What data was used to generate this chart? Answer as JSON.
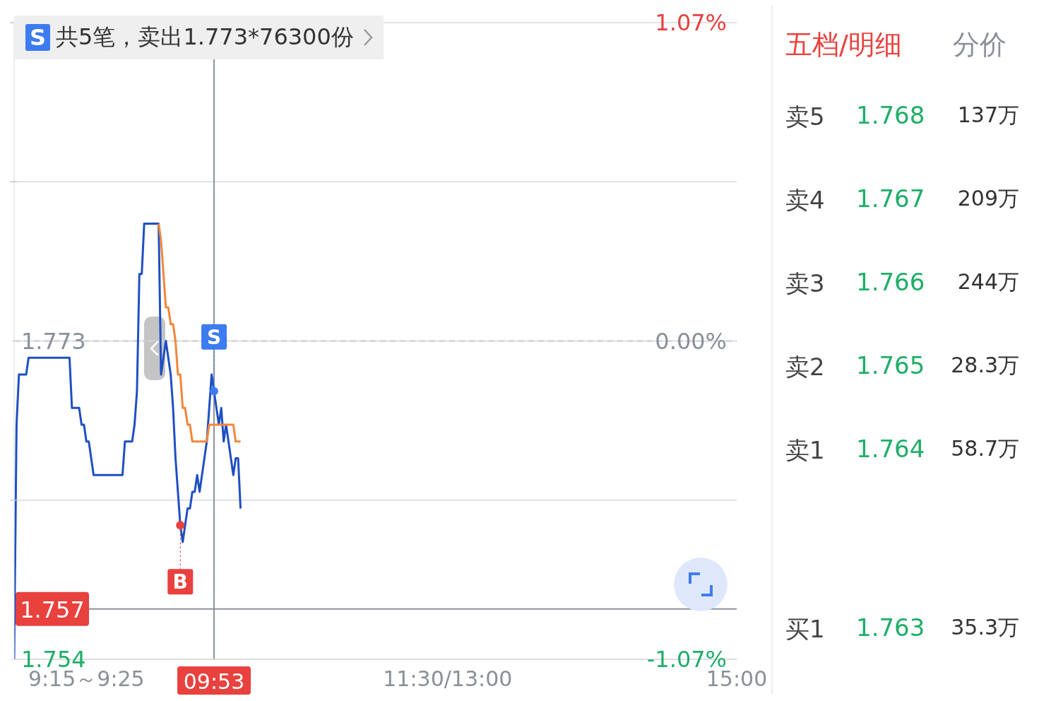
{
  "chart_data": {
    "type": "line",
    "categories": [
      null,
      null,
      null,
      null,
      null,
      null,
      null,
      null,
      null,
      null,
      null,
      null,
      null,
      null,
      null,
      null,
      null,
      null,
      null,
      null,
      null,
      null,
      null,
      null,
      null,
      null,
      null,
      null,
      null,
      null,
      "9:15～9:25",
      null,
      null,
      null,
      null,
      null,
      null,
      null,
      null,
      null,
      null,
      null,
      null,
      null,
      null,
      null,
      null,
      null,
      null,
      null,
      null,
      null,
      null,
      null,
      null,
      null,
      null,
      null,
      null,
      null,
      null,
      null,
      null,
      null,
      null,
      null,
      null,
      null,
      null,
      null,
      null,
      null,
      null,
      null,
      null,
      null,
      null,
      null,
      null,
      null,
      null,
      null,
      null,
      "09:53",
      null,
      null,
      null,
      null,
      null,
      null,
      null,
      null,
      null,
      null,
      null,
      null,
      null,
      null,
      null,
      null,
      null,
      null,
      null,
      null,
      null,
      null,
      null,
      null,
      null,
      null,
      null,
      null,
      null,
      null,
      null,
      null,
      null,
      null,
      null,
      null,
      null,
      null,
      null,
      null,
      null,
      null,
      null,
      null,
      null,
      null,
      null,
      null,
      null,
      null,
      null,
      null,
      null,
      null,
      null,
      null,
      null,
      null,
      null,
      null,
      null,
      null,
      null,
      null,
      null,
      null,
      null,
      null,
      null,
      null,
      null,
      null,
      null,
      null,
      null,
      null,
      null,
      null,
      null,
      null,
      null,
      null,
      null,
      null,
      null,
      null,
      null,
      null,
      null,
      null,
      null,
      null,
      null,
      null,
      null,
      null,
      "11:30/13:00",
      null,
      null,
      null,
      null,
      null,
      null,
      null,
      null,
      null,
      null,
      null,
      null,
      null,
      null,
      null,
      null,
      null,
      null,
      null,
      null,
      null,
      null,
      null,
      null,
      null,
      null,
      null,
      null,
      null,
      null,
      null,
      null,
      null,
      null,
      null,
      null,
      null,
      null,
      null,
      null,
      null,
      null,
      null,
      null,
      null,
      null,
      null,
      null,
      null,
      null,
      null,
      null,
      null,
      null,
      null,
      null,
      null,
      null,
      null,
      null,
      null,
      null,
      null,
      null,
      null,
      null,
      null,
      null,
      null,
      null,
      null,
      null,
      null,
      null,
      null,
      null,
      null,
      null,
      null,
      null,
      null,
      null,
      null,
      null,
      null,
      null,
      null,
      null,
      null,
      null,
      null,
      null,
      null,
      null,
      null,
      null,
      null,
      null,
      null,
      null,
      null,
      null,
      null,
      null,
      null,
      null,
      null,
      null,
      null,
      null,
      null,
      null,
      null,
      null,
      null,
      null,
      null,
      null,
      null,
      "15:00"
    ],
    "ylim": [
      1.754,
      1.792
    ],
    "yticks": [
      {
        "value": 1.754,
        "label": "1.754"
      },
      {
        "value": 1.7635,
        "label": null
      },
      {
        "value": 1.773,
        "label": "1.773"
      },
      {
        "value": 1.7825,
        "label": null
      },
      {
        "value": 1.792,
        "label": null
      }
    ],
    "y2lim": [
      -1.07,
      1.07
    ],
    "y2ticks": [
      {
        "value": -1.07,
        "label": "-1.07%"
      },
      {
        "value": 0,
        "label": "0.00%"
      },
      {
        "value": 1.07,
        "label": "1.07%"
      }
    ],
    "grid": "y",
    "marker": "none",
    "line_style": "solid",
    "legend": false,
    "series": [
      {
        "color": "#1f4fc2",
        "values": [
          1.754,
          1.768,
          1.771,
          1.771,
          1.771,
          1.771,
          1.772,
          1.772,
          1.772,
          1.772,
          1.772,
          1.772,
          1.772,
          1.772,
          1.772,
          1.772,
          1.772,
          1.772,
          1.772,
          1.772,
          1.772,
          1.772,
          1.772,
          1.772,
          1.769,
          1.769,
          1.769,
          1.769,
          1.768,
          1.768,
          1.767,
          1.767,
          1.766,
          1.765,
          1.765,
          1.765,
          1.765,
          1.765,
          1.765,
          1.765,
          1.765,
          1.765,
          1.765,
          1.765,
          1.765,
          1.765,
          1.767,
          1.767,
          1.767,
          1.767,
          1.768,
          1.77,
          1.777,
          1.777,
          1.78,
          1.78,
          1.78,
          1.78,
          1.78,
          1.78,
          1.78,
          1.771,
          1.772,
          1.773,
          1.772,
          1.771,
          1.769,
          1.766,
          1.764,
          1.762,
          1.761,
          1.762,
          1.763,
          1.763,
          1.764,
          1.764,
          1.765,
          1.764,
          1.765,
          1.766,
          1.767,
          1.769,
          1.771,
          1.77,
          1.769,
          1.768,
          1.769,
          1.767,
          1.768,
          1.767,
          1.766,
          1.765,
          1.766,
          1.766,
          1.763,
          null,
          null,
          null,
          null,
          null,
          null,
          null,
          null,
          null,
          null,
          null,
          null,
          null,
          null,
          null,
          null,
          null,
          null,
          null,
          null,
          null,
          null,
          null,
          null,
          null,
          null,
          null,
          null,
          null,
          null,
          null,
          null,
          null,
          null,
          null,
          null,
          null,
          null,
          null,
          null,
          null,
          null,
          null,
          null,
          null,
          null,
          null,
          null,
          null,
          null,
          null,
          null,
          null,
          null,
          null,
          null,
          null,
          null,
          null,
          null,
          null,
          null,
          null,
          null,
          null,
          null,
          null,
          null,
          null,
          null,
          null,
          null,
          null,
          null,
          null,
          null,
          null,
          null,
          null,
          null,
          null,
          null,
          null,
          null,
          null,
          null,
          null,
          null,
          null,
          null,
          null,
          null,
          null,
          null,
          null,
          null,
          null,
          null,
          null,
          null,
          null,
          null,
          null,
          null,
          null,
          null,
          null,
          null,
          null,
          null,
          null,
          null,
          null,
          null,
          null,
          null,
          null,
          null,
          null,
          null,
          null,
          null,
          null,
          null,
          null,
          null,
          null,
          null,
          null,
          null,
          null,
          null,
          null,
          null,
          null,
          null,
          null,
          null,
          null,
          null,
          null,
          null,
          null,
          null,
          null,
          null,
          null,
          null,
          null,
          null,
          null,
          null,
          null,
          null,
          null,
          null,
          null,
          null,
          null,
          null,
          null,
          null,
          null,
          null,
          null,
          null,
          null,
          null,
          null,
          null,
          null,
          null,
          null,
          null,
          null,
          null,
          null,
          null,
          null,
          null,
          null,
          null,
          null,
          null,
          null,
          null,
          null,
          null,
          null,
          null,
          null,
          null,
          null,
          null,
          null,
          null,
          null,
          null,
          null,
          null,
          null,
          null,
          null,
          null,
          null,
          null
        ]
      },
      {
        "color": "#f0873a",
        "values": [
          null,
          null,
          null,
          null,
          null,
          null,
          null,
          null,
          null,
          null,
          null,
          null,
          null,
          null,
          null,
          null,
          null,
          null,
          null,
          null,
          null,
          null,
          null,
          null,
          null,
          null,
          null,
          null,
          null,
          null,
          null,
          null,
          null,
          null,
          null,
          null,
          null,
          null,
          null,
          null,
          null,
          null,
          null,
          null,
          null,
          null,
          null,
          null,
          null,
          null,
          null,
          null,
          null,
          null,
          null,
          null,
          null,
          null,
          null,
          null,
          1.78,
          1.779,
          1.777,
          1.775,
          1.775,
          1.774,
          1.774,
          1.773,
          1.771,
          1.771,
          1.769,
          1.769,
          1.768,
          1.768,
          1.767,
          1.767,
          1.767,
          1.767,
          1.767,
          1.767,
          1.767,
          1.768,
          1.768,
          1.768,
          1.768,
          1.768,
          1.768,
          1.768,
          1.768,
          1.768,
          1.768,
          1.768,
          1.767,
          1.767,
          1.767,
          null,
          null,
          null,
          null,
          null,
          null,
          null,
          null,
          null,
          null,
          null,
          null,
          null,
          null,
          null,
          null,
          null,
          null,
          null,
          null,
          null,
          null,
          null,
          null,
          null,
          null,
          null,
          null,
          null,
          null,
          null,
          null,
          null,
          null,
          null,
          null,
          null,
          null,
          null,
          null,
          null,
          null,
          null,
          null,
          null,
          null,
          null,
          null,
          null,
          null,
          null,
          null,
          null,
          null,
          null,
          null,
          null,
          null,
          null,
          null,
          null,
          null,
          null,
          null,
          null,
          null,
          null,
          null,
          null,
          null,
          null,
          null,
          null,
          null,
          null,
          null,
          null,
          null,
          null,
          null,
          null,
          null,
          null,
          null,
          null,
          null,
          null,
          null,
          null,
          null,
          null,
          null,
          null,
          null,
          null,
          null,
          null,
          null,
          null,
          null,
          null,
          null,
          null,
          null,
          null,
          null,
          null,
          null,
          null,
          null,
          null,
          null,
          null,
          null,
          null,
          null,
          null,
          null,
          null,
          null,
          null,
          null,
          null,
          null,
          null,
          null,
          null,
          null,
          null,
          null,
          null,
          null,
          null,
          null,
          null,
          null,
          null,
          null,
          null,
          null,
          null,
          null,
          null,
          null,
          null,
          null,
          null,
          null,
          null,
          null,
          null,
          null,
          null,
          null,
          null,
          null,
          null,
          null,
          null,
          null,
          null,
          null,
          null,
          null,
          null,
          null,
          null,
          null,
          null,
          null,
          null,
          null,
          null,
          null,
          null,
          null,
          null,
          null,
          null,
          null,
          null,
          null,
          null,
          null,
          null,
          null,
          null,
          null,
          null,
          null,
          null,
          null,
          null,
          null,
          null,
          null,
          null,
          null,
          null,
          null,
          null,
          null,
          null,
          null,
          null,
          null
        ]
      }
    ],
    "ref_lines": [
      {
        "axis": "y",
        "value": 1.773,
        "line_style": "dashed",
        "color": "#c9cdd6"
      },
      {
        "axis": "y",
        "value": 1.757,
        "label": "1.757",
        "color": "#8d929c"
      },
      {
        "axis": "x",
        "value": "09:53",
        "color": "#8d929c"
      }
    ],
    "annotations": [
      "S",
      "共5笔，卖出1.773*76300份",
      {
        "text": "S",
        "x": "09:53",
        "y": 1.77
      },
      {
        "text": "B",
        "y": 1.762
      },
      "五档/明细",
      "分价",
      "卖5 1.768 137万",
      "卖4 1.767 209万",
      "卖3 1.766 244万",
      "卖2 1.765 28.3万",
      "卖1 1.764 58.7万",
      "买1 1.763 35.3万"
    ]
  }
}
